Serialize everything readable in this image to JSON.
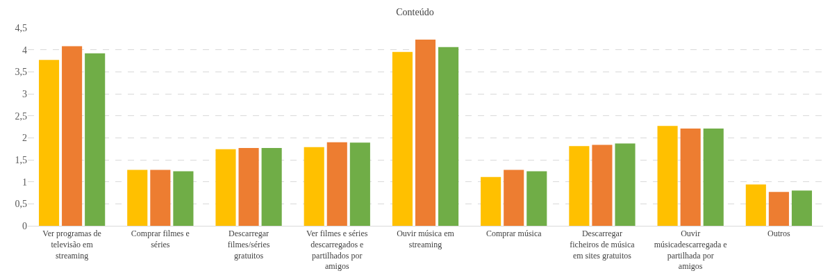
{
  "chart_data": {
    "type": "bar",
    "title": "Conteúdo",
    "categories": [
      "Ver programas de televisão em streaming",
      "Comprar filmes e séries",
      "Descarregar filmes/séries gratuitos",
      "Ver filmes e séries descarregados e partilhados por amigos",
      "Ouvir música em streaming",
      "Comprar música",
      "Descarregar ficheiros de música em sites gratuitos",
      "Ouvir músicadescarregada e partilhada por amigos",
      "Outros"
    ],
    "series": [
      {
        "color": "#ffc000",
        "values": [
          3.77,
          1.27,
          1.74,
          1.79,
          3.95,
          1.11,
          1.81,
          2.27,
          0.94
        ]
      },
      {
        "color": "#ed7d31",
        "values": [
          4.08,
          1.27,
          1.77,
          1.9,
          4.23,
          1.27,
          1.84,
          2.21,
          0.77
        ]
      },
      {
        "color": "#70ad47",
        "values": [
          3.92,
          1.24,
          1.77,
          1.89,
          4.06,
          1.24,
          1.87,
          2.21,
          0.8
        ]
      }
    ],
    "ylim": [
      0,
      4.5
    ],
    "yticks": [
      0,
      {
        "value": 0.5,
        "label": "0,5"
      },
      1,
      {
        "value": 1.5,
        "label": "1,5"
      },
      2,
      {
        "value": 2.5,
        "label": "2,5"
      },
      3,
      {
        "value": 3.5,
        "label": "3,5"
      },
      4,
      {
        "value": 4.5,
        "label": "4,5"
      }
    ],
    "grid": "y"
  }
}
